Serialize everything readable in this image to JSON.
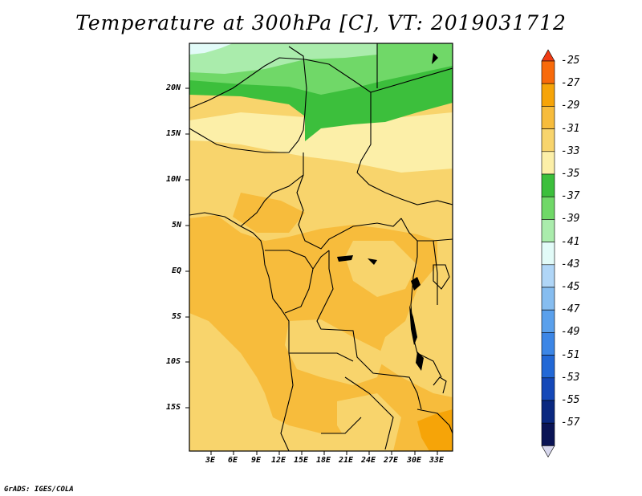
{
  "title": "Temperature at 300hPa [C], VT: 2019031712",
  "credit": "GrADS: IGES/COLA",
  "lat_labels": [
    "20N",
    "15N",
    "10N",
    "5N",
    "EQ",
    "5S",
    "10S",
    "15S"
  ],
  "lon_labels": [
    "3E",
    "6E",
    "9E",
    "12E",
    "15E",
    "18E",
    "21E",
    "24E",
    "27E",
    "30E",
    "33E"
  ],
  "colorbar": {
    "labels": [
      "-25",
      "-27",
      "-29",
      "-31",
      "-33",
      "-35",
      "-37",
      "-39",
      "-41",
      "-43",
      "-45",
      "-47",
      "-49",
      "-51",
      "-53",
      "-55",
      "-57"
    ],
    "colors": [
      "#f03c14",
      "#f86a0a",
      "#f6a408",
      "#f7bc3c",
      "#f8d46c",
      "#fcefa8",
      "#3cbf3c",
      "#70d868",
      "#aaecac",
      "#e2fbf8",
      "#b0d6f7",
      "#86bdf0",
      "#5aa0ec",
      "#3c86e6",
      "#2268d6",
      "#1448b8",
      "#0a2880",
      "#0a1455",
      "#d8d8ee"
    ]
  },
  "map": {
    "region": "Central Africa",
    "variable": "Temperature",
    "level": "300hPa",
    "units": "C",
    "valid_time": "2019031712"
  }
}
